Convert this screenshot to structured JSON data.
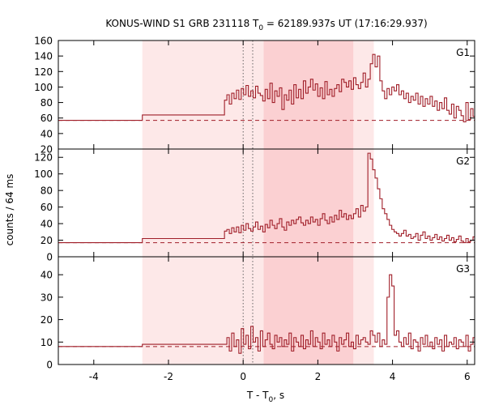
{
  "chart_data": {
    "type": "line",
    "title": {
      "prefix": "KONUS-WIND S1 GRB 231118 T",
      "sub": "0",
      "suffix": " = 62189.937s UT (17:16:29.937)"
    },
    "xlabel": {
      "prefix": "T - T",
      "sub": "0",
      "suffix": ", s"
    },
    "ylabel": "counts / 64 ms",
    "xlim": [
      -4.95,
      6.2
    ],
    "xticks": [
      -4,
      -2,
      0,
      2,
      4,
      6
    ],
    "colors": {
      "curve": "#a01e28",
      "light_band": "#fde8e8",
      "dark_band": "#fbd0d2",
      "axes": "#000000"
    },
    "shaded_intervals": [
      {
        "from": -2.7,
        "to": 3.5,
        "shade": "light"
      },
      {
        "from": 0.55,
        "to": 2.95,
        "shade": "dark"
      }
    ],
    "vertical_markers": [
      0.0,
      0.256
    ],
    "panels": [
      {
        "name": "G1",
        "ylim": [
          20,
          160
        ],
        "yticks": [
          20,
          40,
          60,
          80,
          100,
          120,
          140,
          160
        ],
        "background_level": 57,
        "pre_step_levels": [
          {
            "from": -4.95,
            "to": -2.7,
            "value": 57
          },
          {
            "from": -2.7,
            "to": -0.5,
            "value": 64
          }
        ],
        "binned_start": -0.5,
        "bin_width": 0.064,
        "binned_values": [
          83,
          90,
          78,
          92,
          85,
          96,
          84,
          98,
          90,
          102,
          88,
          95,
          86,
          101,
          92,
          89,
          82,
          97,
          85,
          105,
          80,
          95,
          88,
          99,
          71,
          90,
          83,
          96,
          78,
          103,
          86,
          97,
          85,
          108,
          92,
          100,
          110,
          96,
          104,
          88,
          99,
          85,
          107,
          90,
          97,
          88,
          98,
          103,
          94,
          110,
          106,
          100,
          108,
          97,
          112,
          103,
          98,
          106,
          118,
          100,
          110,
          130,
          142,
          126,
          140,
          108,
          95,
          85,
          98,
          90,
          100,
          95,
          103,
          90,
          95,
          85,
          92,
          80,
          88,
          83,
          92,
          78,
          88,
          75,
          85,
          78,
          88,
          75,
          82,
          70,
          80,
          72,
          86,
          70,
          65,
          78,
          60,
          75,
          70,
          63,
          55,
          80,
          58,
          72,
          62,
          55,
          75,
          50,
          60,
          52,
          70,
          55,
          62,
          48,
          58,
          75,
          50,
          68,
          45,
          65,
          52,
          72,
          48,
          62,
          55,
          77,
          50,
          58,
          55,
          48,
          65,
          50,
          60,
          52,
          58,
          56,
          70,
          50,
          62,
          58,
          75,
          52,
          48,
          62,
          76,
          53,
          68,
          58,
          50,
          65,
          60,
          55
        ]
      },
      {
        "name": "G2",
        "ylim": [
          0,
          130
        ],
        "yticks": [
          0,
          20,
          40,
          60,
          80,
          100,
          120
        ],
        "background_level": 17,
        "pre_step_levels": [
          {
            "from": -4.95,
            "to": -2.7,
            "value": 17
          },
          {
            "from": -2.7,
            "to": -0.5,
            "value": 22
          }
        ],
        "binned_start": -0.5,
        "bin_width": 0.064,
        "binned_values": [
          31,
          33,
          28,
          35,
          30,
          36,
          29,
          38,
          32,
          40,
          34,
          31,
          36,
          42,
          33,
          37,
          30,
          39,
          35,
          44,
          38,
          34,
          40,
          46,
          36,
          32,
          42,
          38,
          44,
          40,
          45,
          48,
          41,
          38,
          44,
          40,
          48,
          42,
          45,
          38,
          46,
          52,
          44,
          40,
          48,
          42,
          50,
          45,
          56,
          48,
          52,
          45,
          50,
          46,
          52,
          58,
          48,
          62,
          55,
          60,
          125,
          118,
          105,
          95,
          82,
          70,
          58,
          52,
          45,
          38,
          33,
          30,
          28,
          25,
          28,
          32,
          25,
          27,
          22,
          24,
          28,
          20,
          26,
          30,
          22,
          25,
          20,
          23,
          27,
          21,
          24,
          19,
          22,
          26,
          20,
          23,
          18,
          21,
          25,
          19,
          17,
          22,
          18,
          20,
          24,
          18,
          15,
          20,
          17,
          21,
          18,
          16,
          20,
          17,
          19,
          22,
          16,
          18,
          15,
          20,
          17,
          16,
          19,
          21,
          15,
          18,
          16,
          20,
          14,
          17,
          19,
          15,
          18,
          16,
          20,
          17,
          15,
          18,
          16,
          19,
          14,
          17,
          15,
          18,
          16,
          14,
          17,
          19,
          15,
          18,
          16,
          14,
          17,
          15,
          18,
          16,
          14,
          17,
          15,
          18
        ]
      },
      {
        "name": "G3",
        "ylim": [
          0,
          48
        ],
        "yticks": [
          0,
          10,
          20,
          30,
          40
        ],
        "background_level": 8,
        "pre_step_levels": [
          {
            "from": -4.95,
            "to": -2.7,
            "value": 8
          },
          {
            "from": -2.7,
            "to": -0.5,
            "value": 9
          }
        ],
        "binned_start": -0.5,
        "bin_width": 0.064,
        "binned_values": [
          9,
          12,
          6,
          14,
          8,
          11,
          5,
          16,
          9,
          13,
          7,
          17,
          10,
          12,
          6,
          15,
          8,
          11,
          14,
          9,
          7,
          13,
          10,
          12,
          8,
          11,
          9,
          14,
          6,
          12,
          10,
          8,
          13,
          7,
          11,
          9,
          15,
          8,
          12,
          10,
          7,
          14,
          9,
          11,
          8,
          13,
          10,
          6,
          12,
          9,
          11,
          14,
          8,
          10,
          7,
          13,
          9,
          11,
          12,
          10,
          9,
          15,
          13,
          10,
          14,
          8,
          11,
          9,
          30,
          40,
          35,
          13,
          15,
          10,
          8,
          12,
          9,
          14,
          7,
          11,
          10,
          6,
          12,
          9,
          13,
          8,
          10,
          7,
          12,
          9,
          11,
          6,
          13,
          8,
          10,
          9,
          12,
          7,
          11,
          10,
          8,
          13,
          6,
          9,
          12,
          10,
          7,
          11,
          9,
          8,
          13,
          10,
          7,
          12,
          9,
          11,
          6,
          10,
          8,
          12,
          9,
          11,
          7,
          10,
          13,
          8,
          9,
          11,
          10,
          7,
          12,
          9,
          8,
          11,
          10,
          6,
          13,
          9,
          8,
          12,
          10,
          7
        ]
      }
    ]
  }
}
